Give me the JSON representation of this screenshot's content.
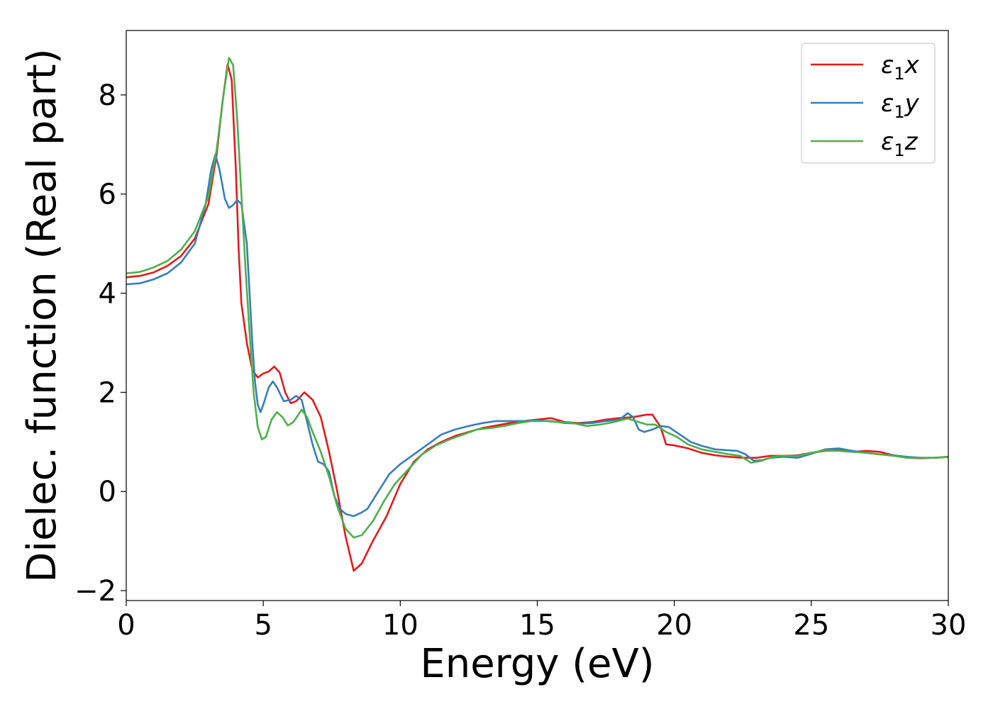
{
  "chart_data": {
    "type": "line",
    "xlabel": "Energy (eV)",
    "ylabel": "Dielec. function (Real part)",
    "xlim": [
      0,
      30
    ],
    "ylim": [
      -2.2,
      9.3
    ],
    "xticks": [
      0,
      5,
      10,
      15,
      20,
      25,
      30
    ],
    "xtick_labels": [
      "0",
      "5",
      "10",
      "15",
      "20",
      "25",
      "30"
    ],
    "yticks": [
      -2,
      0,
      2,
      4,
      6,
      8
    ],
    "ytick_labels": [
      "−2",
      "0",
      "2",
      "4",
      "6",
      "8"
    ],
    "grid": false,
    "legend_position": "top-right",
    "series": [
      {
        "name": "ε₁x",
        "name_base": "ε",
        "name_sub": "1",
        "name_suffix": "x",
        "color": "#e41a1c",
        "points": [
          [
            0,
            4.32
          ],
          [
            0.5,
            4.35
          ],
          [
            1,
            4.42
          ],
          [
            1.5,
            4.55
          ],
          [
            2,
            4.75
          ],
          [
            2.5,
            5.1
          ],
          [
            3,
            5.8
          ],
          [
            3.3,
            6.8
          ],
          [
            3.5,
            7.8
          ],
          [
            3.7,
            8.62
          ],
          [
            3.85,
            8.3
          ],
          [
            4.0,
            6.5
          ],
          [
            4.1,
            4.9
          ],
          [
            4.2,
            3.8
          ],
          [
            4.4,
            3.0
          ],
          [
            4.6,
            2.45
          ],
          [
            4.8,
            2.3
          ],
          [
            5.0,
            2.38
          ],
          [
            5.2,
            2.42
          ],
          [
            5.4,
            2.52
          ],
          [
            5.6,
            2.4
          ],
          [
            5.8,
            2.0
          ],
          [
            6.0,
            1.78
          ],
          [
            6.2,
            1.82
          ],
          [
            6.5,
            2.0
          ],
          [
            6.8,
            1.85
          ],
          [
            7.1,
            1.5
          ],
          [
            7.4,
            0.8
          ],
          [
            7.7,
            0.0
          ],
          [
            8.0,
            -0.9
          ],
          [
            8.3,
            -1.6
          ],
          [
            8.6,
            -1.45
          ],
          [
            9.0,
            -1.0
          ],
          [
            9.5,
            -0.5
          ],
          [
            10.0,
            0.15
          ],
          [
            10.5,
            0.6
          ],
          [
            11.0,
            0.85
          ],
          [
            11.5,
            1.0
          ],
          [
            12.0,
            1.12
          ],
          [
            12.5,
            1.2
          ],
          [
            13.0,
            1.28
          ],
          [
            13.5,
            1.33
          ],
          [
            14.0,
            1.38
          ],
          [
            14.5,
            1.42
          ],
          [
            15.0,
            1.45
          ],
          [
            15.5,
            1.48
          ],
          [
            16.0,
            1.4
          ],
          [
            16.5,
            1.38
          ],
          [
            17.0,
            1.4
          ],
          [
            17.5,
            1.45
          ],
          [
            18.0,
            1.48
          ],
          [
            18.5,
            1.5
          ],
          [
            19.0,
            1.55
          ],
          [
            19.2,
            1.55
          ],
          [
            19.5,
            1.3
          ],
          [
            19.7,
            0.95
          ],
          [
            20.0,
            0.93
          ],
          [
            20.5,
            0.87
          ],
          [
            21.0,
            0.78
          ],
          [
            21.5,
            0.73
          ],
          [
            22.0,
            0.7
          ],
          [
            22.5,
            0.68
          ],
          [
            23.0,
            0.68
          ],
          [
            23.5,
            0.72
          ],
          [
            24.0,
            0.72
          ],
          [
            24.5,
            0.73
          ],
          [
            25.0,
            0.78
          ],
          [
            25.5,
            0.82
          ],
          [
            26.0,
            0.83
          ],
          [
            26.5,
            0.8
          ],
          [
            27.0,
            0.82
          ],
          [
            27.5,
            0.8
          ],
          [
            28.0,
            0.73
          ],
          [
            28.5,
            0.68
          ],
          [
            29.0,
            0.67
          ],
          [
            29.5,
            0.68
          ],
          [
            30.0,
            0.7
          ]
        ]
      },
      {
        "name": "ε₁y",
        "name_base": "ε",
        "name_sub": "1",
        "name_suffix": "y",
        "color": "#377eb8",
        "points": [
          [
            0,
            4.18
          ],
          [
            0.5,
            4.2
          ],
          [
            1,
            4.28
          ],
          [
            1.5,
            4.4
          ],
          [
            2,
            4.62
          ],
          [
            2.5,
            5.0
          ],
          [
            2.9,
            5.8
          ],
          [
            3.1,
            6.5
          ],
          [
            3.25,
            6.8
          ],
          [
            3.4,
            6.5
          ],
          [
            3.6,
            5.9
          ],
          [
            3.75,
            5.72
          ],
          [
            3.9,
            5.78
          ],
          [
            4.05,
            5.88
          ],
          [
            4.2,
            5.8
          ],
          [
            4.4,
            5.0
          ],
          [
            4.5,
            4.0
          ],
          [
            4.6,
            3.0
          ],
          [
            4.7,
            2.2
          ],
          [
            4.8,
            1.75
          ],
          [
            4.9,
            1.6
          ],
          [
            5.0,
            1.75
          ],
          [
            5.2,
            2.1
          ],
          [
            5.35,
            2.22
          ],
          [
            5.5,
            2.1
          ],
          [
            5.75,
            1.82
          ],
          [
            6.0,
            1.85
          ],
          [
            6.2,
            1.93
          ],
          [
            6.4,
            1.85
          ],
          [
            6.6,
            1.4
          ],
          [
            6.8,
            0.95
          ],
          [
            7.0,
            0.6
          ],
          [
            7.2,
            0.55
          ],
          [
            7.4,
            0.4
          ],
          [
            7.6,
            -0.1
          ],
          [
            7.8,
            -0.35
          ],
          [
            8.0,
            -0.45
          ],
          [
            8.3,
            -0.5
          ],
          [
            8.6,
            -0.42
          ],
          [
            8.8,
            -0.35
          ],
          [
            9.2,
            0.0
          ],
          [
            9.6,
            0.35
          ],
          [
            10.0,
            0.55
          ],
          [
            10.5,
            0.75
          ],
          [
            11.0,
            0.95
          ],
          [
            11.5,
            1.15
          ],
          [
            12.0,
            1.25
          ],
          [
            12.5,
            1.32
          ],
          [
            13.0,
            1.38
          ],
          [
            13.5,
            1.42
          ],
          [
            14.0,
            1.42
          ],
          [
            14.5,
            1.42
          ],
          [
            15.0,
            1.43
          ],
          [
            15.5,
            1.42
          ],
          [
            16.0,
            1.38
          ],
          [
            16.5,
            1.37
          ],
          [
            17.0,
            1.38
          ],
          [
            17.5,
            1.42
          ],
          [
            18.0,
            1.45
          ],
          [
            18.3,
            1.58
          ],
          [
            18.5,
            1.5
          ],
          [
            18.7,
            1.25
          ],
          [
            18.9,
            1.2
          ],
          [
            19.2,
            1.25
          ],
          [
            19.5,
            1.32
          ],
          [
            19.8,
            1.3
          ],
          [
            20.2,
            1.15
          ],
          [
            20.6,
            1.0
          ],
          [
            21.0,
            0.92
          ],
          [
            21.5,
            0.85
          ],
          [
            22.0,
            0.83
          ],
          [
            22.3,
            0.82
          ],
          [
            22.6,
            0.75
          ],
          [
            22.9,
            0.62
          ],
          [
            23.2,
            0.63
          ],
          [
            23.5,
            0.68
          ],
          [
            24.0,
            0.7
          ],
          [
            24.5,
            0.68
          ],
          [
            25.0,
            0.76
          ],
          [
            25.5,
            0.85
          ],
          [
            26.0,
            0.87
          ],
          [
            26.5,
            0.82
          ],
          [
            27.0,
            0.78
          ],
          [
            27.5,
            0.75
          ],
          [
            28.0,
            0.73
          ],
          [
            28.5,
            0.7
          ],
          [
            29.0,
            0.68
          ],
          [
            29.5,
            0.68
          ],
          [
            30.0,
            0.7
          ]
        ]
      },
      {
        "name": "ε₁z",
        "name_base": "ε",
        "name_sub": "1",
        "name_suffix": "z",
        "color": "#4daf4a",
        "points": [
          [
            0,
            4.4
          ],
          [
            0.5,
            4.43
          ],
          [
            1,
            4.52
          ],
          [
            1.5,
            4.65
          ],
          [
            2,
            4.88
          ],
          [
            2.5,
            5.25
          ],
          [
            3.0,
            5.95
          ],
          [
            3.3,
            6.9
          ],
          [
            3.55,
            8.0
          ],
          [
            3.75,
            8.75
          ],
          [
            3.9,
            8.6
          ],
          [
            4.05,
            7.5
          ],
          [
            4.2,
            6.0
          ],
          [
            4.35,
            4.5
          ],
          [
            4.5,
            3.2
          ],
          [
            4.65,
            2.0
          ],
          [
            4.8,
            1.3
          ],
          [
            4.95,
            1.05
          ],
          [
            5.1,
            1.1
          ],
          [
            5.3,
            1.45
          ],
          [
            5.5,
            1.6
          ],
          [
            5.7,
            1.5
          ],
          [
            5.9,
            1.33
          ],
          [
            6.1,
            1.4
          ],
          [
            6.4,
            1.65
          ],
          [
            6.6,
            1.5
          ],
          [
            6.8,
            1.2
          ],
          [
            7.1,
            0.8
          ],
          [
            7.4,
            0.3
          ],
          [
            7.7,
            -0.3
          ],
          [
            8.0,
            -0.75
          ],
          [
            8.3,
            -0.93
          ],
          [
            8.6,
            -0.88
          ],
          [
            9.0,
            -0.6
          ],
          [
            9.4,
            -0.2
          ],
          [
            9.8,
            0.15
          ],
          [
            10.3,
            0.45
          ],
          [
            10.8,
            0.75
          ],
          [
            11.3,
            0.93
          ],
          [
            11.8,
            1.05
          ],
          [
            12.3,
            1.15
          ],
          [
            12.8,
            1.25
          ],
          [
            13.3,
            1.28
          ],
          [
            13.8,
            1.32
          ],
          [
            14.3,
            1.38
          ],
          [
            14.8,
            1.42
          ],
          [
            15.3,
            1.42
          ],
          [
            15.8,
            1.4
          ],
          [
            16.3,
            1.38
          ],
          [
            16.8,
            1.32
          ],
          [
            17.3,
            1.35
          ],
          [
            17.8,
            1.4
          ],
          [
            18.3,
            1.47
          ],
          [
            18.7,
            1.4
          ],
          [
            19.0,
            1.35
          ],
          [
            19.3,
            1.35
          ],
          [
            19.7,
            1.2
          ],
          [
            20.1,
            1.1
          ],
          [
            20.5,
            0.95
          ],
          [
            21.0,
            0.85
          ],
          [
            21.5,
            0.8
          ],
          [
            22.0,
            0.75
          ],
          [
            22.4,
            0.72
          ],
          [
            22.8,
            0.58
          ],
          [
            23.2,
            0.62
          ],
          [
            23.6,
            0.7
          ],
          [
            24.0,
            0.72
          ],
          [
            24.5,
            0.72
          ],
          [
            25.0,
            0.78
          ],
          [
            25.5,
            0.83
          ],
          [
            26.0,
            0.82
          ],
          [
            26.5,
            0.8
          ],
          [
            27.0,
            0.78
          ],
          [
            27.5,
            0.75
          ],
          [
            28.0,
            0.72
          ],
          [
            28.5,
            0.68
          ],
          [
            29.0,
            0.68
          ],
          [
            29.5,
            0.68
          ],
          [
            30.0,
            0.7
          ]
        ]
      }
    ]
  }
}
